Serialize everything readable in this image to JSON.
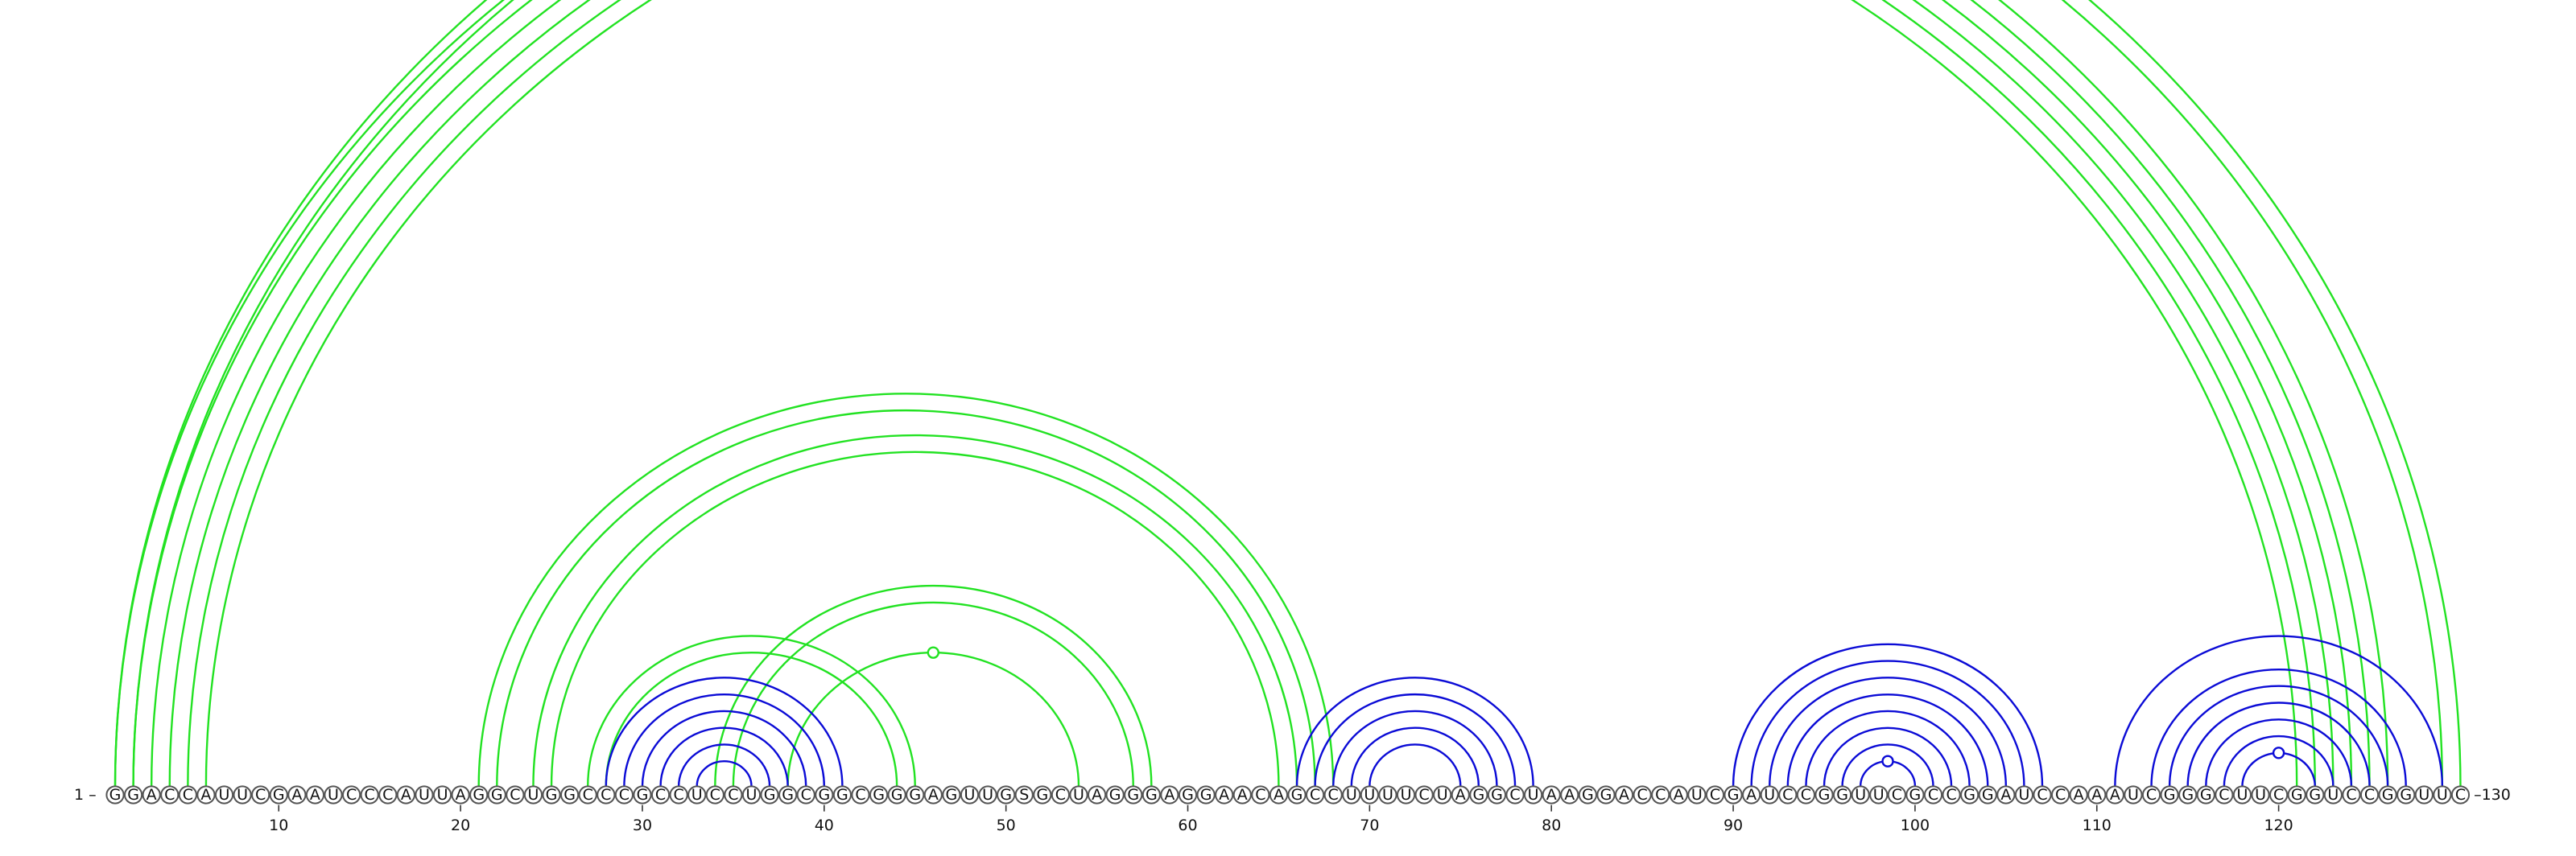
{
  "diagram": {
    "title": "",
    "sequence": "GGACCAUUCGAAUCCCAUUAGGCUGGCCCGCCUCCUGGCGGCGGGAGUUGSGCUAGGGAGGAACAGCCUUUUCUAGGCUAAGGACCAUCGAUCCGGUUCGCCGGAUCCAAAUCGGGCUUCGGUCCGGUUC",
    "start_label": "1",
    "end_label": "130",
    "start_marker": "1 –",
    "end_marker": "–130",
    "ticks": [
      {
        "position": 10,
        "label": "10"
      },
      {
        "position": 20,
        "label": "20"
      },
      {
        "position": 30,
        "label": "30"
      },
      {
        "position": 40,
        "label": "40"
      },
      {
        "position": 50,
        "label": "50"
      },
      {
        "position": 60,
        "label": "60"
      },
      {
        "position": 70,
        "label": "70"
      },
      {
        "position": 80,
        "label": "80"
      },
      {
        "position": 90,
        "label": "90"
      },
      {
        "position": 100,
        "label": "100"
      },
      {
        "position": 110,
        "label": "110"
      },
      {
        "position": 120,
        "label": "120"
      }
    ],
    "colors": {
      "primary": "#0b0bd6",
      "pseudoknot": "#22e222",
      "outline": "#555555"
    },
    "arc_groups": [
      {
        "name": "outer-pseudoknot-helix",
        "layer": "pseudoknot",
        "pairs": [
          [
            1,
            126
          ],
          [
            2,
            125
          ],
          [
            3,
            124
          ],
          [
            4,
            123
          ],
          [
            5,
            122
          ],
          [
            6,
            121
          ]
        ],
        "open_marker": false
      },
      {
        "name": "long-range-bracket",
        "layer": "pseudoknot",
        "pairs": [
          [
            1,
            130
          ],
          [
            2,
            129
          ]
        ],
        "open_marker": true
      },
      {
        "name": "middle-pseudoknot-helix",
        "layer": "pseudoknot",
        "pairs": [
          [
            21,
            68
          ],
          [
            22,
            67
          ],
          [
            24,
            66
          ],
          [
            25,
            65
          ]
        ],
        "open_marker": false
      },
      {
        "name": "left-interior-helix",
        "layer": "pseudoknot",
        "pairs": [
          [
            27,
            45
          ],
          [
            28,
            44
          ]
        ],
        "open_marker": false
      },
      {
        "name": "right-interior-helix",
        "layer": "pseudoknot",
        "pairs": [
          [
            34,
            58
          ],
          [
            35,
            57
          ]
        ],
        "open_marker": false
      },
      {
        "name": "single-pseudoknot-pair",
        "layer": "pseudoknot",
        "pairs": [
          [
            38,
            54
          ]
        ],
        "open_marker": true
      },
      {
        "name": "hairpin-30-40",
        "layer": "primary",
        "pairs": [
          [
            28,
            41
          ],
          [
            29,
            40
          ],
          [
            30,
            39
          ],
          [
            31,
            38
          ],
          [
            32,
            37
          ],
          [
            33,
            36
          ]
        ],
        "open_marker": false
      },
      {
        "name": "hairpin-66-79",
        "layer": "primary",
        "pairs": [
          [
            66,
            79
          ],
          [
            67,
            78
          ],
          [
            68,
            77
          ],
          [
            69,
            76
          ],
          [
            70,
            75
          ]
        ],
        "open_marker": false
      },
      {
        "name": "hairpin-90-107",
        "layer": "primary",
        "pairs": [
          [
            90,
            107
          ],
          [
            91,
            106
          ],
          [
            92,
            105
          ],
          [
            93,
            104
          ],
          [
            94,
            103
          ],
          [
            95,
            102
          ],
          [
            96,
            101
          ],
          [
            97,
            100
          ]
        ],
        "open_marker": true
      },
      {
        "name": "hairpin-111-129",
        "layer": "primary",
        "pairs": [
          [
            111,
            129
          ],
          [
            113,
            127
          ],
          [
            114,
            126
          ],
          [
            115,
            125
          ],
          [
            116,
            124
          ],
          [
            117,
            123
          ],
          [
            118,
            122
          ]
        ],
        "open_marker": true
      }
    ]
  }
}
